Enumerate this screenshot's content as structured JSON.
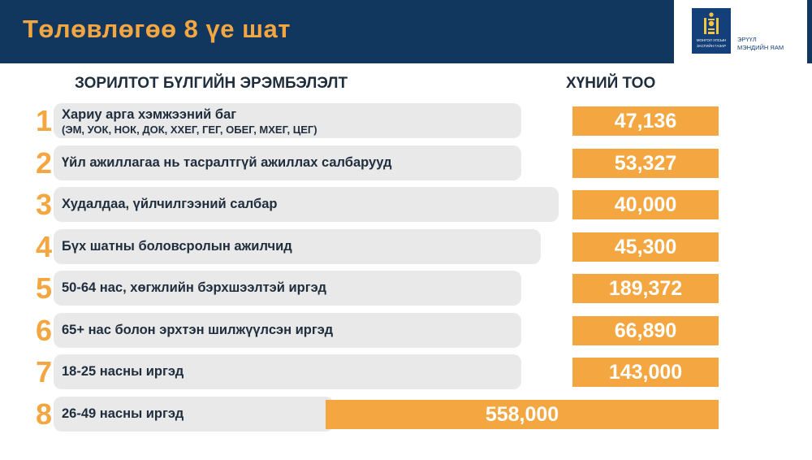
{
  "header": {
    "title": "Төлөвлөгөө 8 үе шат",
    "logo_small_1": "МОНГОЛ УЛСЫН",
    "logo_small_2": "ЗАСГИЙН ГАЗАР",
    "ministry_line1": "ЭРҮҮЛ",
    "ministry_line2": "МЭНДИЙН ЯАМ"
  },
  "columns": {
    "left": "ЗОРИЛТОТ БҮЛГИЙН ЭРЭМБЭЛЭЛТ",
    "right": "ХҮНИЙ ТОО"
  },
  "colors": {
    "navy": "#12375f",
    "accent": "#f4a640",
    "row_bg": "#e9e9e9"
  },
  "chart_data": {
    "type": "bar",
    "orientation": "horizontal",
    "categories": [
      "Хариу арга хэмжээний баг",
      "Үйл ажиллагаа нь тасралтгүй ажиллах салбарууд",
      "Худалдаа, үйлчилгээний салбар",
      "Бүх шатны боловсролын ажилчид",
      "50-64 нас, хөгжлийн бэрхшээлтэй иргэд",
      "65+ нас болон эрхтэн шилжүүлсэн иргэд",
      "18-25 насны иргэд",
      "26-49 насны иргэд"
    ],
    "category_notes": [
      "(ЭМ, УОК, НОК, ДОК, ХХЕГ, ГЕГ, ОБЕГ, МХЕГ, ЦЕГ)",
      "",
      "",
      "",
      "",
      "",
      "",
      ""
    ],
    "ranks": [
      "1",
      "2",
      "3",
      "4",
      "5",
      "6",
      "7",
      "8"
    ],
    "values": [
      47136,
      53327,
      40000,
      45300,
      189372,
      66890,
      143000,
      558000
    ],
    "value_labels": [
      "47,136",
      "53,327",
      "40,000",
      "45,300",
      "189,372",
      "66,890",
      "143,000",
      "558,000"
    ]
  }
}
